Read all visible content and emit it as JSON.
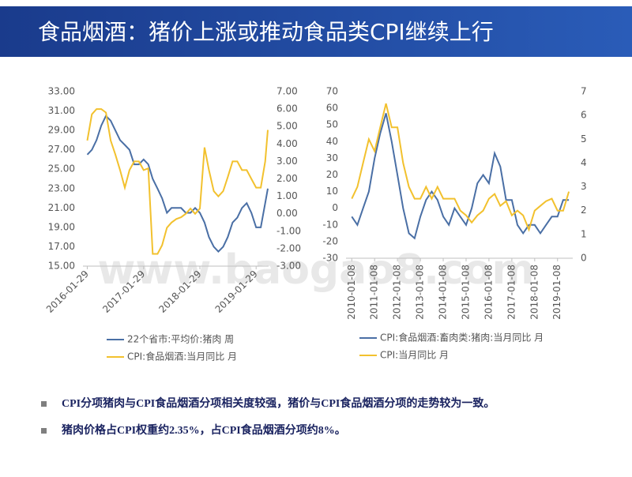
{
  "header": {
    "title": "食品烟酒：猪价上涨或推动食品类CPI继续上行"
  },
  "bullets": [
    "CPI分项猪肉与CPI食品烟酒分项相关度较强，猪价与CPI食品烟酒分项的走势较为一致。",
    "猪肉价格占CPI权重约2.35%，占CPI食品烟酒分项约8%。"
  ],
  "watermark": "www.baogao8.com",
  "chart_data": [
    {
      "type": "line",
      "x": [
        "2016-01-29",
        "2016-02-28",
        "2016-03-29",
        "2016-04-29",
        "2016-05-29",
        "2016-06-29",
        "2016-07-29",
        "2016-08-29",
        "2016-09-29",
        "2016-10-29",
        "2016-11-29",
        "2016-12-29",
        "2017-01-29",
        "2017-02-28",
        "2017-03-29",
        "2017-04-29",
        "2017-05-29",
        "2017-06-29",
        "2017-07-29",
        "2017-08-29",
        "2017-09-29",
        "2017-10-29",
        "2017-11-29",
        "2017-12-29",
        "2018-01-29",
        "2018-02-28",
        "2018-03-29",
        "2018-04-29",
        "2018-05-29",
        "2018-06-29",
        "2018-07-29",
        "2018-08-29",
        "2018-09-29",
        "2018-10-29",
        "2018-11-29",
        "2018-12-29",
        "2019-01-29",
        "2019-02-28",
        "2019-03-29",
        "2019-04-15"
      ],
      "xlim": [
        "2016-01-01",
        "2019-04-20"
      ],
      "xticks": [
        "2016-01-29",
        "2017-01-29",
        "2018-01-29",
        "2019-01-29"
      ],
      "ylim": [
        15,
        33
      ],
      "yticks": [
        {
          "value": 15,
          "label": "15.00"
        },
        {
          "value": 17,
          "label": "17.00"
        },
        {
          "value": 19,
          "label": "19.00"
        },
        {
          "value": 21,
          "label": "21.00"
        },
        {
          "value": 23,
          "label": "23.00"
        },
        {
          "value": 25,
          "label": "25.00"
        },
        {
          "value": 27,
          "label": "27.00"
        },
        {
          "value": 29,
          "label": "29.00"
        },
        {
          "value": 31,
          "label": "31.00"
        },
        {
          "value": 33,
          "label": "33.00"
        }
      ],
      "y2lim": [
        -3,
        7
      ],
      "y2ticks": [
        {
          "value": -3,
          "label": "-3.00"
        },
        {
          "value": -2,
          "label": "-2.00"
        },
        {
          "value": -1,
          "label": "-1.00"
        },
        {
          "value": 0,
          "label": "0.00"
        },
        {
          "value": 1,
          "label": "1.00"
        },
        {
          "value": 2,
          "label": "2.00"
        },
        {
          "value": 3,
          "label": "3.00"
        },
        {
          "value": 4,
          "label": "4.00"
        },
        {
          "value": 5,
          "label": "5.00"
        },
        {
          "value": 6,
          "label": "6.00"
        },
        {
          "value": 7,
          "label": "7.00"
        }
      ],
      "series": [
        {
          "name": "22个省市:平均价:猪肉  周",
          "color": "#4a6fa5",
          "values": [
            26.5,
            27,
            28,
            29.5,
            30.5,
            30,
            29,
            28,
            27.5,
            27,
            25.5,
            25.5,
            26,
            25.5,
            24,
            23,
            22,
            20.5,
            21,
            21,
            21,
            20.5,
            20.5,
            21,
            20.5,
            19.5,
            18,
            17,
            16.5,
            17,
            18,
            19.5,
            20,
            21,
            21.5,
            20.5,
            19,
            19,
            21.5,
            23
          ]
        },
        {
          "name": "CPI:食品烟酒:当月同比  月",
          "color": "#f2c12e",
          "axis": "y2",
          "values": [
            4.2,
            5.7,
            6,
            6,
            5.8,
            4.2,
            3.4,
            2.5,
            1.5,
            2.5,
            3,
            3,
            2.5,
            2.6,
            -2.3,
            -2.3,
            -1.8,
            -0.8,
            -0.5,
            -0.3,
            -0.2,
            0,
            0.3,
            0,
            0.3,
            3.8,
            2.5,
            1.3,
            1,
            1.3,
            2.1,
            3,
            3,
            2.5,
            2.5,
            2,
            1.5,
            1.5,
            3,
            4.8
          ]
        }
      ]
    },
    {
      "type": "line",
      "x": [
        "2010-01-08",
        "2010-04-08",
        "2010-07-08",
        "2010-10-08",
        "2011-01-08",
        "2011-04-08",
        "2011-07-08",
        "2011-10-08",
        "2012-01-08",
        "2012-04-08",
        "2012-07-08",
        "2012-10-08",
        "2013-01-08",
        "2013-04-08",
        "2013-07-08",
        "2013-10-08",
        "2014-01-08",
        "2014-04-08",
        "2014-07-08",
        "2014-10-08",
        "2015-01-08",
        "2015-04-08",
        "2015-07-08",
        "2015-10-08",
        "2016-01-08",
        "2016-04-08",
        "2016-07-08",
        "2016-10-08",
        "2017-01-08",
        "2017-04-08",
        "2017-07-08",
        "2017-10-08",
        "2018-01-08",
        "2018-04-08",
        "2018-07-08",
        "2018-10-08",
        "2019-01-08",
        "2019-04-08",
        "2019-07-08"
      ],
      "xlim": [
        "2009-10-08",
        "2019-09-08"
      ],
      "xticks": [
        "2010-01-08",
        "2011-01-08",
        "2012-01-08",
        "2013-01-08",
        "2014-01-08",
        "2015-01-08",
        "2016-01-08",
        "2017-01-08",
        "2018-01-08",
        "2019-01-08"
      ],
      "ylim": [
        -30,
        70
      ],
      "yticks": [
        -30,
        -20,
        -10,
        0,
        10,
        20,
        30,
        40,
        50,
        60,
        70
      ],
      "y2lim": [
        0,
        7
      ],
      "y2ticks": [
        0,
        1,
        2,
        3,
        4,
        5,
        6,
        7
      ],
      "series": [
        {
          "name": "CPI:食品烟酒:畜肉类:猪肉:当月同比  月",
          "color": "#4a6fa5",
          "values": [
            -5,
            -10,
            0,
            10,
            30,
            45,
            57,
            40,
            20,
            0,
            -15,
            -18,
            -5,
            5,
            10,
            5,
            -5,
            -10,
            0,
            -5,
            -10,
            0,
            15,
            20,
            15,
            33,
            25,
            5,
            5,
            -10,
            -15,
            -10,
            -10,
            -15,
            -10,
            -5,
            -5,
            5,
            5
          ]
        },
        {
          "name": "CPI:当月同比  月",
          "color": "#f2c12e",
          "axis": "y2",
          "values": [
            2.5,
            3,
            4,
            5,
            4.5,
            5.5,
            6.5,
            5.5,
            5.5,
            4,
            3,
            2.5,
            2.5,
            3,
            2.5,
            3,
            2.5,
            2.5,
            2.5,
            2,
            1.8,
            1.5,
            1.8,
            2,
            2.5,
            2.7,
            2.2,
            2.4,
            1.8,
            2,
            1.8,
            1.2,
            2,
            2.2,
            2.4,
            2.5,
            2,
            2,
            2.8
          ]
        }
      ]
    }
  ]
}
